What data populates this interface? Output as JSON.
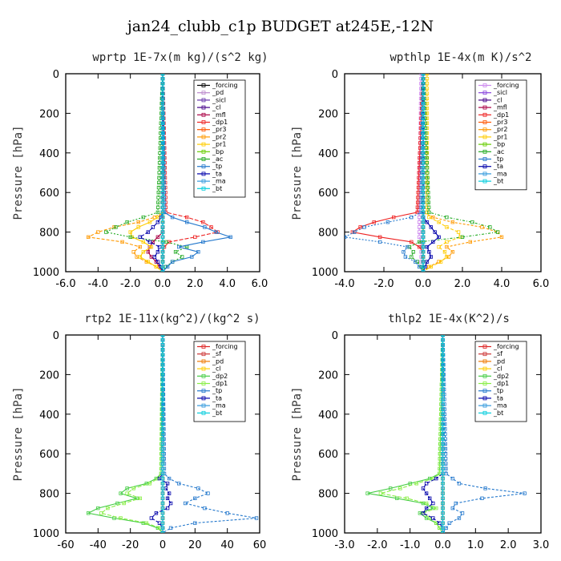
{
  "figure": {
    "title": "jan24_clubb_c1p  BUDGET at245E,-12N"
  },
  "chart_data": [
    {
      "type": "line",
      "title": "wprtp  1E-7x(m kg)/(s^2 kg)",
      "ylabel": "Pressure [hPa]",
      "xlim": [
        -6,
        6
      ],
      "ylim": [
        1000,
        0
      ],
      "xticks": [
        "-6.0",
        "-4.0",
        "-2.0",
        "0.0",
        "2.0",
        "4.0",
        "6.0"
      ],
      "yticks": [
        "0",
        "200",
        "400",
        "600",
        "800",
        "1000"
      ],
      "legend": "top-right",
      "y": [
        0,
        700,
        725,
        750,
        775,
        800,
        825,
        850,
        875,
        900,
        925,
        950,
        975,
        1000
      ],
      "series": [
        {
          "name": "_forcing",
          "color": "#000000",
          "values": [
            0,
            0,
            0,
            0,
            0,
            0,
            0,
            0,
            0,
            0,
            0,
            0,
            0,
            0
          ]
        },
        {
          "name": "_pd",
          "color": "#bb88cc",
          "values": [
            0,
            0,
            0,
            0,
            0,
            0,
            0,
            0,
            0,
            0,
            0,
            0,
            0,
            0
          ]
        },
        {
          "name": "_sicl",
          "color": "#6633aa",
          "values": [
            0,
            0,
            0,
            0,
            0,
            0,
            0,
            0,
            0,
            0,
            0,
            0,
            0,
            0
          ]
        },
        {
          "name": "_cl",
          "color": "#440088",
          "values": [
            0,
            0,
            0,
            0,
            0,
            0,
            0,
            0,
            0,
            0,
            0,
            0,
            0,
            0
          ]
        },
        {
          "name": "_mfl",
          "color": "#aa0044",
          "values": [
            0,
            0,
            0,
            0,
            0,
            0,
            -0.3,
            -0.6,
            -0.8,
            -0.9,
            -0.7,
            -0.4,
            -0.2,
            0
          ]
        },
        {
          "name": "_dp1",
          "color": "#ee2222",
          "values": [
            0,
            0.2,
            1.5,
            2.5,
            3.0,
            3.4,
            2.0,
            0.4,
            0.1,
            0,
            0,
            0,
            0,
            0
          ]
        },
        {
          "name": "_pr3",
          "color": "#ff5500",
          "values": [
            0,
            0,
            0,
            0,
            0,
            0,
            0,
            0,
            0,
            0,
            0,
            0,
            0,
            0
          ]
        },
        {
          "name": "_pr2",
          "color": "#ff9900",
          "values": [
            0,
            0,
            -0.5,
            -1.5,
            -3.0,
            -4.0,
            -4.6,
            -2.5,
            -1.4,
            -1.8,
            -1.6,
            -1.0,
            -0.4,
            0
          ]
        },
        {
          "name": "_pr1",
          "color": "#ffcc00",
          "values": [
            0,
            0,
            -0.3,
            -0.8,
            -1.5,
            -2.0,
            -1.9,
            -1.2,
            -0.7,
            -1.2,
            -1.4,
            -0.9,
            -0.4,
            0
          ]
        },
        {
          "name": "_bp",
          "color": "#66cc00",
          "values": [
            0,
            0,
            0,
            0,
            0,
            0,
            0,
            0,
            0,
            0,
            0,
            0,
            0,
            0
          ]
        },
        {
          "name": "_ac",
          "color": "#22aa22",
          "values": [
            0,
            -0.3,
            -1.2,
            -2.2,
            -2.9,
            -3.5,
            -2.0,
            0.2,
            1.5,
            0.8,
            1.2,
            0.6,
            0.2,
            0
          ]
        },
        {
          "name": "_tp",
          "color": "#2277cc",
          "values": [
            0,
            0.1,
            0.6,
            1.5,
            2.6,
            3.3,
            4.2,
            2.5,
            1.0,
            2.2,
            1.8,
            0.6,
            0.3,
            0
          ]
        },
        {
          "name": "_ta",
          "color": "#0000aa",
          "values": [
            0,
            0,
            -0.1,
            -0.3,
            -0.6,
            -0.9,
            -1.4,
            -0.8,
            -0.2,
            -0.3,
            -0.5,
            -0.3,
            -0.1,
            0
          ]
        },
        {
          "name": "_ma",
          "color": "#3399dd",
          "values": [
            0,
            0,
            0,
            0,
            0,
            0,
            0,
            0,
            0,
            0,
            0,
            0,
            0,
            0
          ]
        },
        {
          "name": "_bt",
          "color": "#00ccdd",
          "values": [
            0,
            0,
            0,
            0,
            0,
            0,
            0,
            0,
            0,
            0,
            0,
            0,
            0,
            0
          ]
        }
      ]
    },
    {
      "type": "line",
      "title": "wpthlp  1E-4x(m K)/s^2",
      "ylabel": "Pressure [hPa]",
      "xlim": [
        -4,
        6
      ],
      "ylim": [
        1000,
        0
      ],
      "xticks": [
        "-4.0",
        "-2.0",
        "0.0",
        "2.0",
        "4.0",
        "6.0"
      ],
      "yticks": [
        "0",
        "200",
        "400",
        "600",
        "800",
        "1000"
      ],
      "legend": "top-right",
      "y": [
        0,
        700,
        725,
        750,
        775,
        800,
        825,
        850,
        875,
        900,
        925,
        950,
        975,
        1000
      ],
      "series": [
        {
          "name": "_forcing",
          "color": "#cc88ee",
          "values": [
            -0.1,
            -0.2,
            -0.2,
            -0.2,
            -0.2,
            -0.2,
            -0.2,
            -0.1,
            -0.1,
            -0.1,
            -0.1,
            -0.1,
            0,
            0
          ]
        },
        {
          "name": "_sicl",
          "color": "#8844dd",
          "values": [
            0,
            0,
            0,
            0,
            0,
            0,
            0,
            0,
            0,
            0,
            0,
            0,
            0,
            0
          ]
        },
        {
          "name": "_cl",
          "color": "#440088",
          "values": [
            0,
            0,
            0,
            0,
            0,
            0,
            0,
            0,
            0,
            0,
            0,
            0,
            0,
            0
          ]
        },
        {
          "name": "_mfl",
          "color": "#aa0044",
          "values": [
            0,
            0,
            0,
            0,
            0,
            0,
            0,
            0,
            0,
            0,
            0,
            0,
            0,
            0
          ]
        },
        {
          "name": "_dp1",
          "color": "#ee2222",
          "values": [
            0,
            -0.3,
            -1.5,
            -2.5,
            -3.2,
            -3.6,
            -2.2,
            -0.6,
            -0.2,
            0,
            0,
            0,
            0,
            0
          ]
        },
        {
          "name": "_pr3",
          "color": "#ff5500",
          "values": [
            0,
            0,
            0,
            0,
            0,
            0,
            0,
            0,
            0,
            0,
            0,
            0,
            0,
            0
          ]
        },
        {
          "name": "_pr2",
          "color": "#ff9900",
          "values": [
            0,
            0,
            0.5,
            1.5,
            3.0,
            3.8,
            4.0,
            2.4,
            1.2,
            1.5,
            1.3,
            0.8,
            0.3,
            0
          ]
        },
        {
          "name": "_pr1",
          "color": "#ffcc00",
          "values": [
            0.2,
            0.2,
            0.3,
            0.8,
            1.2,
            1.8,
            1.9,
            1.2,
            0.8,
            1.1,
            1.2,
            0.9,
            0.4,
            0
          ]
        },
        {
          "name": "_bp",
          "color": "#66cc00",
          "values": [
            0,
            0,
            0,
            0,
            0,
            0,
            0,
            0,
            0,
            0,
            0,
            0,
            0,
            0
          ]
        },
        {
          "name": "_ac",
          "color": "#22aa22",
          "values": [
            0,
            0.3,
            1.2,
            2.5,
            3.4,
            3.8,
            2.0,
            -0.2,
            -0.7,
            -0.5,
            -0.6,
            -0.3,
            -0.1,
            0
          ]
        },
        {
          "name": "_tp",
          "color": "#2277cc",
          "values": [
            0,
            -0.1,
            -0.6,
            -1.8,
            -3.0,
            -3.5,
            -4.0,
            -2.2,
            -0.8,
            -1.0,
            -0.9,
            -0.4,
            -0.2,
            0
          ]
        },
        {
          "name": "_ta",
          "color": "#0000aa",
          "values": [
            0,
            0,
            0,
            0.2,
            0.4,
            0.6,
            0.8,
            0.5,
            0.2,
            0.3,
            0.4,
            0.2,
            0.1,
            0
          ]
        },
        {
          "name": "_ma",
          "color": "#3399dd",
          "values": [
            0,
            0,
            0,
            0,
            0,
            0,
            0,
            0,
            0,
            0,
            0,
            0,
            0,
            0
          ]
        },
        {
          "name": "_bt",
          "color": "#00ccdd",
          "values": [
            0,
            0,
            0,
            0,
            0,
            0,
            0,
            0,
            0,
            0,
            0,
            0,
            0,
            0
          ]
        }
      ]
    },
    {
      "type": "line",
      "title": "rtp2  1E-11x(kg^2)/(kg^2 s)",
      "ylabel": "Pressure [hPa]",
      "xlim": [
        -60,
        60
      ],
      "ylim": [
        1000,
        0
      ],
      "xticks": [
        "-60",
        "-40",
        "-20",
        "0",
        "20",
        "40",
        "60"
      ],
      "yticks": [
        "0",
        "200",
        "400",
        "600",
        "800",
        "1000"
      ],
      "legend": "top-right",
      "y": [
        0,
        700,
        725,
        750,
        775,
        800,
        825,
        850,
        875,
        900,
        925,
        950,
        975,
        1000
      ],
      "series": [
        {
          "name": "_forcing",
          "color": "#dd2222",
          "values": [
            0,
            0,
            0,
            0,
            0,
            0,
            0,
            0,
            0,
            0,
            0,
            0,
            0,
            0
          ]
        },
        {
          "name": "_sf",
          "color": "#cc3333",
          "values": [
            0,
            0,
            0,
            0,
            0,
            0,
            0,
            0,
            0,
            0,
            0,
            0,
            0,
            0
          ]
        },
        {
          "name": "_pd",
          "color": "#ee7700",
          "values": [
            0,
            0,
            0,
            0,
            0,
            0,
            0,
            0,
            0,
            0,
            0,
            0,
            0,
            0
          ]
        },
        {
          "name": "_cl",
          "color": "#ffcc00",
          "values": [
            0,
            0,
            0,
            0,
            0,
            0,
            0,
            0,
            0,
            0,
            0,
            0,
            0,
            0
          ]
        },
        {
          "name": "_dp2",
          "color": "#44cc44",
          "values": [
            0,
            -1,
            -4,
            -10,
            -22,
            -26,
            -16,
            -28,
            -40,
            -46,
            -30,
            -12,
            -3,
            0
          ]
        },
        {
          "name": "_dp1",
          "color": "#88ee44",
          "values": [
            0,
            -1,
            -3,
            -8,
            -18,
            -22,
            -14,
            -24,
            -34,
            -38,
            -26,
            -10,
            -2,
            0
          ]
        },
        {
          "name": "_tp",
          "color": "#2277cc",
          "values": [
            0,
            1,
            4,
            10,
            22,
            28,
            20,
            14,
            26,
            40,
            58,
            20,
            5,
            0
          ]
        },
        {
          "name": "_ta",
          "color": "#0000aa",
          "values": [
            0,
            0,
            -2,
            3,
            2,
            4,
            3,
            5,
            3,
            -4,
            -7,
            -2,
            0,
            0
          ]
        },
        {
          "name": "_ma",
          "color": "#3399dd",
          "values": [
            0,
            0,
            0,
            0,
            0,
            0,
            0,
            0,
            0,
            0,
            0,
            0,
            0,
            0
          ]
        },
        {
          "name": "_bt",
          "color": "#00ccdd",
          "values": [
            0,
            0,
            0,
            0,
            0,
            0,
            0,
            0,
            0,
            0,
            0,
            0,
            0,
            0
          ]
        }
      ]
    },
    {
      "type": "line",
      "title": "thlp2  1E-4x(K^2)/s",
      "ylabel": "Pressure [hPa]",
      "xlim": [
        -3,
        3
      ],
      "ylim": [
        1000,
        0
      ],
      "xticks": [
        "-3.0",
        "-2.0",
        "-1.0",
        "0.0",
        "1.0",
        "2.0",
        "3.0"
      ],
      "yticks": [
        "0",
        "200",
        "400",
        "600",
        "800",
        "1000"
      ],
      "legend": "top-right",
      "y": [
        0,
        700,
        725,
        750,
        775,
        800,
        825,
        850,
        875,
        900,
        925,
        950,
        975,
        1000
      ],
      "series": [
        {
          "name": "_forcing",
          "color": "#dd2222",
          "values": [
            0,
            0,
            0,
            0,
            0,
            0,
            0,
            0,
            0,
            0,
            0,
            0,
            0,
            0
          ]
        },
        {
          "name": "_sf",
          "color": "#cc3333",
          "values": [
            0,
            0,
            0,
            0,
            0,
            0,
            0,
            0,
            0,
            0,
            0,
            0,
            0,
            0
          ]
        },
        {
          "name": "_pd",
          "color": "#ee7700",
          "values": [
            0,
            0,
            0,
            0,
            0,
            0,
            0,
            0,
            0,
            0,
            0,
            0,
            0,
            0
          ]
        },
        {
          "name": "_cl",
          "color": "#ffcc00",
          "values": [
            0,
            0,
            0,
            0,
            0,
            0,
            0,
            0,
            0,
            0,
            0,
            0,
            0,
            0
          ]
        },
        {
          "name": "_dp2",
          "color": "#44cc44",
          "values": [
            0,
            -0.1,
            -0.4,
            -1.0,
            -1.6,
            -2.3,
            -1.4,
            -0.6,
            -0.3,
            -0.7,
            -0.5,
            -0.2,
            -0.1,
            0
          ]
        },
        {
          "name": "_dp1",
          "color": "#88ee44",
          "values": [
            0,
            -0.1,
            -0.3,
            -0.8,
            -1.3,
            -1.9,
            -1.1,
            -0.5,
            -0.2,
            -0.6,
            -0.4,
            -0.2,
            -0.1,
            0
          ]
        },
        {
          "name": "_tp",
          "color": "#2277cc",
          "values": [
            0,
            0.1,
            0.3,
            0.5,
            1.3,
            2.5,
            1.2,
            0.4,
            0.3,
            0.6,
            0.5,
            0.2,
            0.1,
            0
          ]
        },
        {
          "name": "_ta",
          "color": "#0000aa",
          "values": [
            0,
            0,
            -0.2,
            -0.5,
            -0.6,
            -0.5,
            -0.4,
            -0.3,
            -0.5,
            -0.6,
            -0.3,
            -0.1,
            0,
            0
          ]
        },
        {
          "name": "_ma",
          "color": "#3399dd",
          "values": [
            0,
            0,
            0,
            0,
            0,
            0,
            0,
            0,
            0,
            0,
            0,
            0,
            0,
            0
          ]
        },
        {
          "name": "_bt",
          "color": "#00ccdd",
          "values": [
            0,
            0,
            0,
            0,
            0,
            0,
            0,
            0,
            0,
            0,
            0,
            0,
            0,
            0
          ]
        }
      ]
    }
  ]
}
